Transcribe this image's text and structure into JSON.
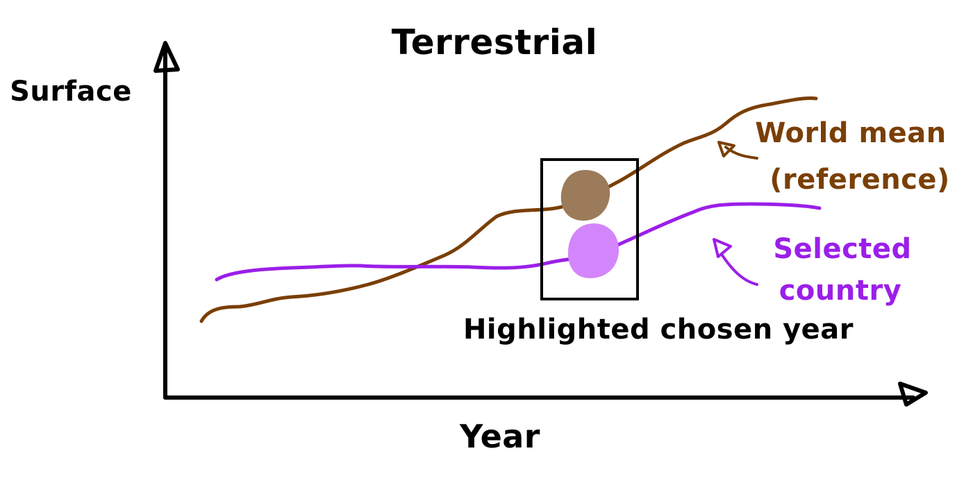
{
  "title": "Terrestrial",
  "ylabel": "Surface",
  "xlabel": "Year",
  "highlight_label": "Highlighted chosen year",
  "legend": {
    "world": {
      "line1": "World mean",
      "line2": "(reference)"
    },
    "country": {
      "line1": "Selected",
      "line2": "country"
    }
  },
  "colors": {
    "axis": "#000000",
    "world_line": "#7a3f05",
    "country_line": "#9b1fe8",
    "world_dot": "#9c7b5a",
    "country_dot": "#d386fb",
    "text": "#000000"
  }
}
